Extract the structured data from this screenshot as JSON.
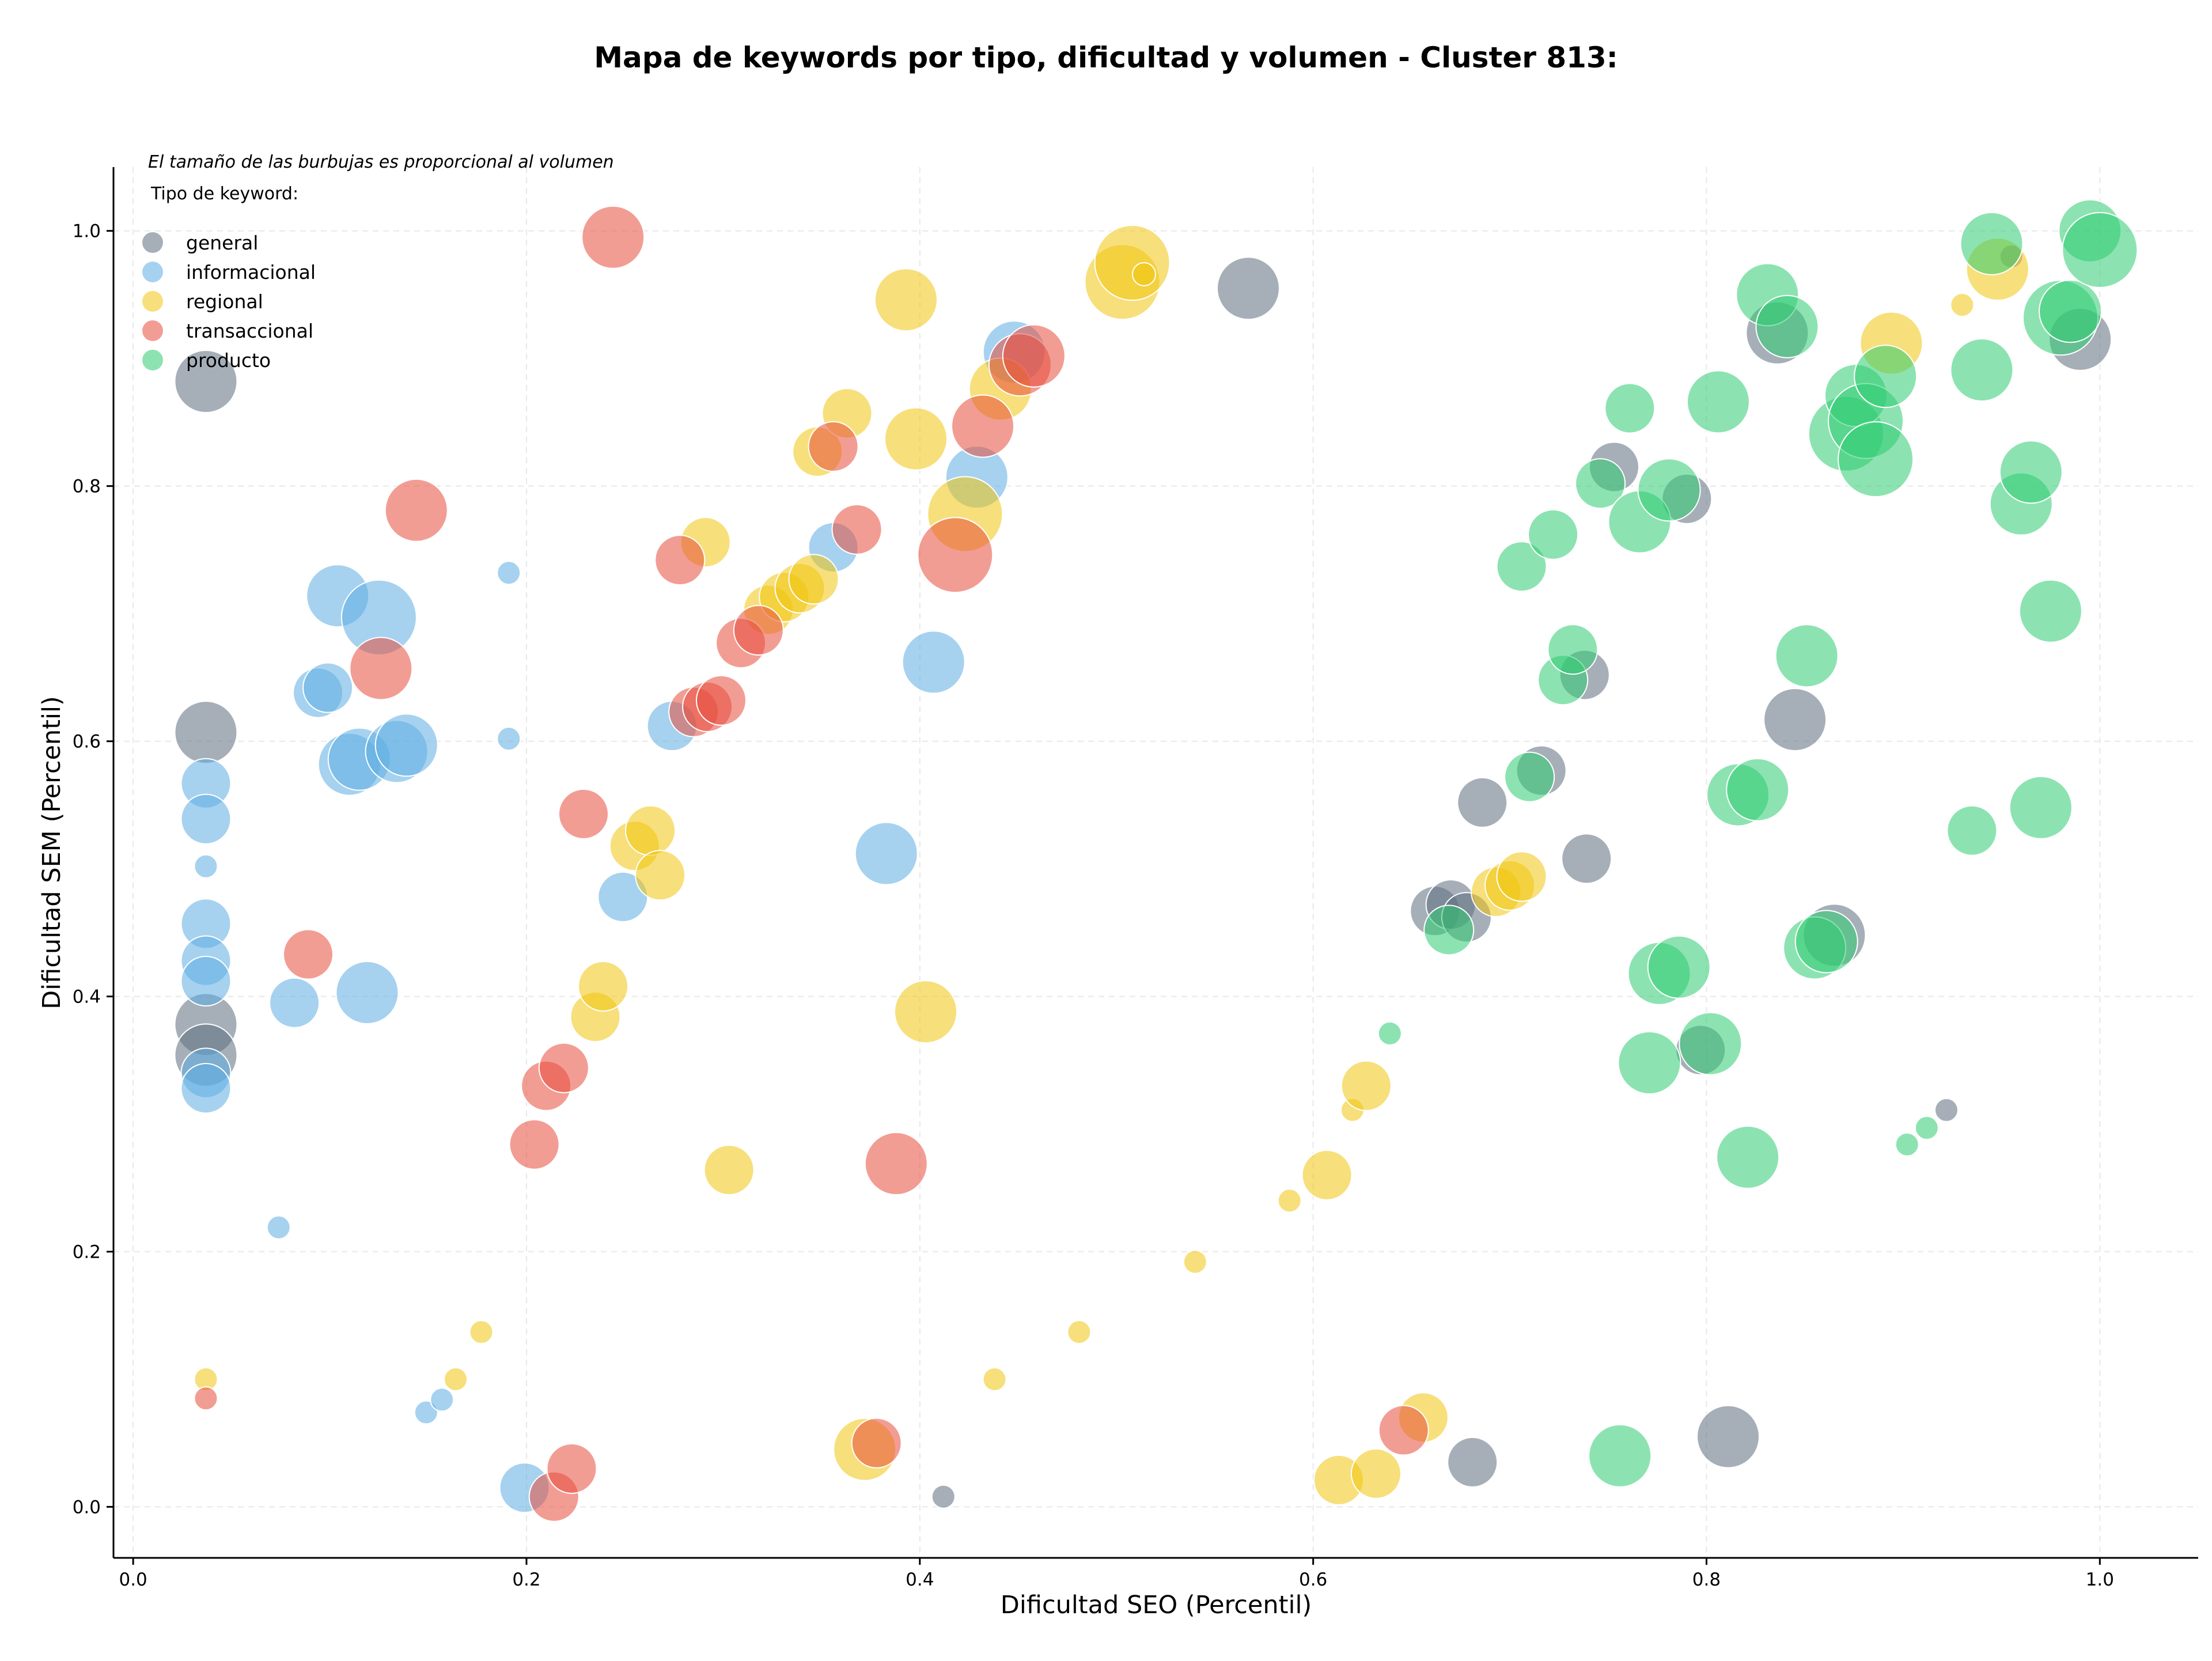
{
  "chart_data": {
    "type": "scatter",
    "title": "Mapa de keywords por tipo, dificultad y volumen - Cluster 813:",
    "xlabel": "Dificultad SEO (Percentil)",
    "ylabel": "Dificultad SEM (Percentil)",
    "xlim": [
      -0.01,
      1.05
    ],
    "ylim": [
      -0.04,
      1.05
    ],
    "xticks": [
      "0.0",
      "0.2",
      "0.4",
      "0.6",
      "0.8",
      "1.0"
    ],
    "yticks": [
      "0.0",
      "0.2",
      "0.4",
      "0.6",
      "0.8",
      "1.0"
    ],
    "grid": true,
    "size_note": "El tamaño de las burbujas es proporcional al volumen",
    "legend": {
      "title": "Tipo de keyword:",
      "placement": "top-left"
    },
    "series": [
      {
        "name": "general",
        "color": "#5d6d7e",
        "points": [
          {
            "x": 0.037,
            "y": 0.882,
            "size": 3
          },
          {
            "x": 0.037,
            "y": 0.607,
            "size": 3
          },
          {
            "x": 0.037,
            "y": 0.378,
            "size": 3
          },
          {
            "x": 0.037,
            "y": 0.354,
            "size": 3
          },
          {
            "x": 0.412,
            "y": 0.008,
            "size": 1
          },
          {
            "x": 0.567,
            "y": 0.955,
            "size": 3
          },
          {
            "x": 0.681,
            "y": 0.035,
            "size": 2
          },
          {
            "x": 0.686,
            "y": 0.552,
            "size": 2
          },
          {
            "x": 0.662,
            "y": 0.467,
            "size": 2
          },
          {
            "x": 0.67,
            "y": 0.472,
            "size": 2
          },
          {
            "x": 0.678,
            "y": 0.462,
            "size": 2
          },
          {
            "x": 0.716,
            "y": 0.577,
            "size": 2
          },
          {
            "x": 0.738,
            "y": 0.652,
            "size": 2
          },
          {
            "x": 0.739,
            "y": 0.508,
            "size": 2
          },
          {
            "x": 0.753,
            "y": 0.815,
            "size": 2
          },
          {
            "x": 0.79,
            "y": 0.79,
            "size": 2
          },
          {
            "x": 0.797,
            "y": 0.358,
            "size": 2
          },
          {
            "x": 0.811,
            "y": 0.055,
            "size": 3
          },
          {
            "x": 0.836,
            "y": 0.92,
            "size": 3
          },
          {
            "x": 0.845,
            "y": 0.617,
            "size": 3
          },
          {
            "x": 0.865,
            "y": 0.448,
            "size": 3
          },
          {
            "x": 0.922,
            "y": 0.311,
            "size": 1
          },
          {
            "x": 0.955,
            "y": 0.98,
            "size": 1
          },
          {
            "x": 0.99,
            "y": 0.915,
            "size": 3
          }
        ]
      },
      {
        "name": "informacional",
        "color": "#5dade2",
        "points": [
          {
            "x": 0.037,
            "y": 0.567,
            "size": 2
          },
          {
            "x": 0.037,
            "y": 0.539,
            "size": 2
          },
          {
            "x": 0.037,
            "y": 0.502,
            "size": 1
          },
          {
            "x": 0.037,
            "y": 0.457,
            "size": 2
          },
          {
            "x": 0.037,
            "y": 0.428,
            "size": 2
          },
          {
            "x": 0.037,
            "y": 0.412,
            "size": 2
          },
          {
            "x": 0.037,
            "y": 0.34,
            "size": 2
          },
          {
            "x": 0.037,
            "y": 0.328,
            "size": 2
          },
          {
            "x": 0.074,
            "y": 0.219,
            "size": 1
          },
          {
            "x": 0.082,
            "y": 0.395,
            "size": 2
          },
          {
            "x": 0.094,
            "y": 0.638,
            "size": 2
          },
          {
            "x": 0.099,
            "y": 0.642,
            "size": 2
          },
          {
            "x": 0.104,
            "y": 0.714,
            "size": 3
          },
          {
            "x": 0.11,
            "y": 0.582,
            "size": 3
          },
          {
            "x": 0.115,
            "y": 0.586,
            "size": 3
          },
          {
            "x": 0.119,
            "y": 0.403,
            "size": 3
          },
          {
            "x": 0.125,
            "y": 0.697,
            "size": 4
          },
          {
            "x": 0.134,
            "y": 0.592,
            "size": 3
          },
          {
            "x": 0.139,
            "y": 0.597,
            "size": 3
          },
          {
            "x": 0.149,
            "y": 0.074,
            "size": 1
          },
          {
            "x": 0.157,
            "y": 0.084,
            "size": 1
          },
          {
            "x": 0.191,
            "y": 0.732,
            "size": 1
          },
          {
            "x": 0.191,
            "y": 0.602,
            "size": 1
          },
          {
            "x": 0.199,
            "y": 0.015,
            "size": 2
          },
          {
            "x": 0.249,
            "y": 0.478,
            "size": 2
          },
          {
            "x": 0.274,
            "y": 0.612,
            "size": 2
          },
          {
            "x": 0.356,
            "y": 0.752,
            "size": 2
          },
          {
            "x": 0.383,
            "y": 0.512,
            "size": 3
          },
          {
            "x": 0.407,
            "y": 0.662,
            "size": 3
          },
          {
            "x": 0.429,
            "y": 0.807,
            "size": 3
          },
          {
            "x": 0.448,
            "y": 0.905,
            "size": 3
          }
        ]
      },
      {
        "name": "regional",
        "color": "#f1c40f",
        "points": [
          {
            "x": 0.037,
            "y": 0.1,
            "size": 1
          },
          {
            "x": 0.164,
            "y": 0.1,
            "size": 1
          },
          {
            "x": 0.177,
            "y": 0.137,
            "size": 1
          },
          {
            "x": 0.235,
            "y": 0.384,
            "size": 2
          },
          {
            "x": 0.239,
            "y": 0.408,
            "size": 2
          },
          {
            "x": 0.255,
            "y": 0.518,
            "size": 2
          },
          {
            "x": 0.263,
            "y": 0.53,
            "size": 2
          },
          {
            "x": 0.268,
            "y": 0.495,
            "size": 2
          },
          {
            "x": 0.291,
            "y": 0.756,
            "size": 2
          },
          {
            "x": 0.303,
            "y": 0.264,
            "size": 2
          },
          {
            "x": 0.323,
            "y": 0.703,
            "size": 2
          },
          {
            "x": 0.331,
            "y": 0.713,
            "size": 2
          },
          {
            "x": 0.339,
            "y": 0.72,
            "size": 2
          },
          {
            "x": 0.346,
            "y": 0.727,
            "size": 2
          },
          {
            "x": 0.348,
            "y": 0.827,
            "size": 2
          },
          {
            "x": 0.363,
            "y": 0.857,
            "size": 2
          },
          {
            "x": 0.372,
            "y": 0.045,
            "size": 3
          },
          {
            "x": 0.393,
            "y": 0.946,
            "size": 3
          },
          {
            "x": 0.398,
            "y": 0.837,
            "size": 3
          },
          {
            "x": 0.403,
            "y": 0.388,
            "size": 3
          },
          {
            "x": 0.423,
            "y": 0.778,
            "size": 4
          },
          {
            "x": 0.438,
            "y": 0.1,
            "size": 1
          },
          {
            "x": 0.441,
            "y": 0.876,
            "size": 3
          },
          {
            "x": 0.481,
            "y": 0.137,
            "size": 1
          },
          {
            "x": 0.503,
            "y": 0.96,
            "size": 4
          },
          {
            "x": 0.508,
            "y": 0.975,
            "size": 4
          },
          {
            "x": 0.514,
            "y": 0.966,
            "size": 1
          },
          {
            "x": 0.54,
            "y": 0.192,
            "size": 1
          },
          {
            "x": 0.588,
            "y": 0.24,
            "size": 1
          },
          {
            "x": 0.607,
            "y": 0.26,
            "size": 2
          },
          {
            "x": 0.613,
            "y": 0.021,
            "size": 2
          },
          {
            "x": 0.62,
            "y": 0.311,
            "size": 1
          },
          {
            "x": 0.627,
            "y": 0.33,
            "size": 2
          },
          {
            "x": 0.632,
            "y": 0.026,
            "size": 2
          },
          {
            "x": 0.656,
            "y": 0.07,
            "size": 2
          },
          {
            "x": 0.693,
            "y": 0.482,
            "size": 2
          },
          {
            "x": 0.7,
            "y": 0.487,
            "size": 2
          },
          {
            "x": 0.706,
            "y": 0.494,
            "size": 2
          },
          {
            "x": 0.894,
            "y": 0.912,
            "size": 3
          },
          {
            "x": 0.93,
            "y": 0.942,
            "size": 1
          },
          {
            "x": 0.948,
            "y": 0.97,
            "size": 3
          }
        ]
      },
      {
        "name": "transaccional",
        "color": "#e74c3c",
        "points": [
          {
            "x": 0.037,
            "y": 0.085,
            "size": 1
          },
          {
            "x": 0.089,
            "y": 0.433,
            "size": 2
          },
          {
            "x": 0.126,
            "y": 0.657,
            "size": 3
          },
          {
            "x": 0.144,
            "y": 0.781,
            "size": 3
          },
          {
            "x": 0.204,
            "y": 0.284,
            "size": 2
          },
          {
            "x": 0.21,
            "y": 0.33,
            "size": 2
          },
          {
            "x": 0.214,
            "y": 0.008,
            "size": 2
          },
          {
            "x": 0.219,
            "y": 0.344,
            "size": 2
          },
          {
            "x": 0.223,
            "y": 0.03,
            "size": 2
          },
          {
            "x": 0.229,
            "y": 0.543,
            "size": 2
          },
          {
            "x": 0.244,
            "y": 0.995,
            "size": 3
          },
          {
            "x": 0.278,
            "y": 0.742,
            "size": 2
          },
          {
            "x": 0.285,
            "y": 0.623,
            "size": 2
          },
          {
            "x": 0.292,
            "y": 0.627,
            "size": 2
          },
          {
            "x": 0.299,
            "y": 0.632,
            "size": 2
          },
          {
            "x": 0.309,
            "y": 0.677,
            "size": 2
          },
          {
            "x": 0.318,
            "y": 0.687,
            "size": 2
          },
          {
            "x": 0.356,
            "y": 0.831,
            "size": 2
          },
          {
            "x": 0.368,
            "y": 0.766,
            "size": 2
          },
          {
            "x": 0.378,
            "y": 0.05,
            "size": 2
          },
          {
            "x": 0.388,
            "y": 0.269,
            "size": 3
          },
          {
            "x": 0.418,
            "y": 0.746,
            "size": 4
          },
          {
            "x": 0.432,
            "y": 0.847,
            "size": 3
          },
          {
            "x": 0.451,
            "y": 0.895,
            "size": 3
          },
          {
            "x": 0.458,
            "y": 0.902,
            "size": 3
          },
          {
            "x": 0.646,
            "y": 0.06,
            "size": 2
          }
        ]
      },
      {
        "name": "producto",
        "color": "#2ecc71",
        "points": [
          {
            "x": 0.639,
            "y": 0.371,
            "size": 1
          },
          {
            "x": 0.669,
            "y": 0.452,
            "size": 2
          },
          {
            "x": 0.706,
            "y": 0.737,
            "size": 2
          },
          {
            "x": 0.71,
            "y": 0.572,
            "size": 2
          },
          {
            "x": 0.722,
            "y": 0.762,
            "size": 2
          },
          {
            "x": 0.727,
            "y": 0.648,
            "size": 2
          },
          {
            "x": 0.732,
            "y": 0.672,
            "size": 2
          },
          {
            "x": 0.746,
            "y": 0.802,
            "size": 2
          },
          {
            "x": 0.756,
            "y": 0.04,
            "size": 3
          },
          {
            "x": 0.761,
            "y": 0.861,
            "size": 2
          },
          {
            "x": 0.766,
            "y": 0.772,
            "size": 3
          },
          {
            "x": 0.771,
            "y": 0.348,
            "size": 3
          },
          {
            "x": 0.776,
            "y": 0.418,
            "size": 3
          },
          {
            "x": 0.781,
            "y": 0.797,
            "size": 3
          },
          {
            "x": 0.786,
            "y": 0.423,
            "size": 3
          },
          {
            "x": 0.802,
            "y": 0.363,
            "size": 3
          },
          {
            "x": 0.806,
            "y": 0.866,
            "size": 3
          },
          {
            "x": 0.816,
            "y": 0.558,
            "size": 3
          },
          {
            "x": 0.821,
            "y": 0.274,
            "size": 3
          },
          {
            "x": 0.826,
            "y": 0.562,
            "size": 3
          },
          {
            "x": 0.831,
            "y": 0.95,
            "size": 3
          },
          {
            "x": 0.841,
            "y": 0.925,
            "size": 3
          },
          {
            "x": 0.851,
            "y": 0.667,
            "size": 3
          },
          {
            "x": 0.855,
            "y": 0.438,
            "size": 3
          },
          {
            "x": 0.861,
            "y": 0.443,
            "size": 3
          },
          {
            "x": 0.871,
            "y": 0.841,
            "size": 4
          },
          {
            "x": 0.876,
            "y": 0.871,
            "size": 3
          },
          {
            "x": 0.881,
            "y": 0.851,
            "size": 4
          },
          {
            "x": 0.886,
            "y": 0.821,
            "size": 4
          },
          {
            "x": 0.891,
            "y": 0.886,
            "size": 3
          },
          {
            "x": 0.902,
            "y": 0.284,
            "size": 1
          },
          {
            "x": 0.912,
            "y": 0.297,
            "size": 1
          },
          {
            "x": 0.935,
            "y": 0.53,
            "size": 2
          },
          {
            "x": 0.94,
            "y": 0.891,
            "size": 3
          },
          {
            "x": 0.945,
            "y": 0.99,
            "size": 3
          },
          {
            "x": 0.96,
            "y": 0.786,
            "size": 3
          },
          {
            "x": 0.965,
            "y": 0.811,
            "size": 3
          },
          {
            "x": 0.97,
            "y": 0.548,
            "size": 3
          },
          {
            "x": 0.975,
            "y": 0.702,
            "size": 3
          },
          {
            "x": 0.98,
            "y": 0.932,
            "size": 4
          },
          {
            "x": 0.985,
            "y": 0.937,
            "size": 3
          },
          {
            "x": 0.995,
            "y": 1.0,
            "size": 3
          },
          {
            "x": 1.0,
            "y": 0.985,
            "size": 4
          }
        ]
      }
    ]
  }
}
